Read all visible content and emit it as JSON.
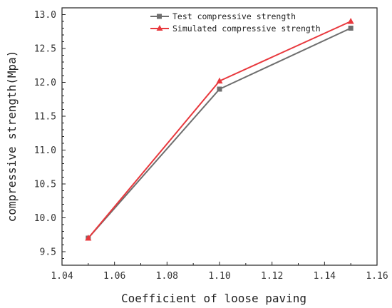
{
  "chart_data": {
    "type": "line",
    "xlabel": "Coefficient of loose paving",
    "ylabel": "compressive strength(Mpa)",
    "xlim": [
      1.04,
      1.16
    ],
    "ylim": [
      9.3,
      13.1
    ],
    "x_ticks": [
      1.04,
      1.06,
      1.08,
      1.1,
      1.12,
      1.14,
      1.16
    ],
    "x_tick_labels": [
      "1.04",
      "1.06",
      "1.08",
      "1.10",
      "1.12",
      "1.14",
      "1.16"
    ],
    "y_ticks": [
      9.5,
      10.0,
      10.5,
      11.0,
      11.5,
      12.0,
      12.5,
      13.0
    ],
    "y_tick_labels": [
      "9.5",
      "10.0",
      "10.5",
      "11.0",
      "11.5",
      "12.0",
      "12.5",
      "13.0"
    ],
    "grid": false,
    "legend_position": "top-right",
    "series": [
      {
        "name": "Test compressive strength",
        "marker": "square",
        "color": "#6e6e6e",
        "x": [
          1.05,
          1.1,
          1.15
        ],
        "y": [
          9.7,
          11.9,
          12.8
        ]
      },
      {
        "name": "Simulated compressive strength",
        "marker": "triangle",
        "color": "#e8383d",
        "x": [
          1.05,
          1.1,
          1.15
        ],
        "y": [
          9.7,
          12.02,
          12.9
        ]
      }
    ]
  }
}
